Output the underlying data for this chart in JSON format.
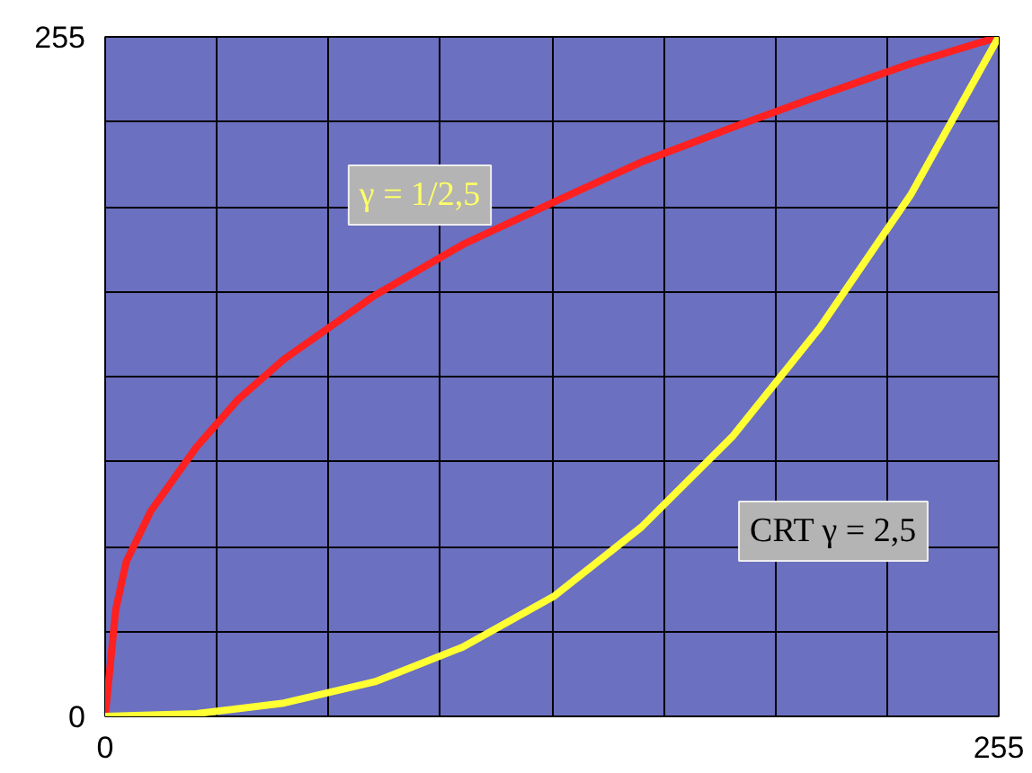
{
  "chart_data": {
    "type": "line",
    "xlim": [
      0,
      255
    ],
    "ylim": [
      0,
      255
    ],
    "xticks": [
      0,
      {
        "value": 31.875,
        "label": null
      },
      {
        "value": 63.75,
        "label": null
      },
      {
        "value": 95.625,
        "label": null
      },
      {
        "value": 127.5,
        "label": null
      },
      {
        "value": 159.375,
        "label": null
      },
      {
        "value": 191.25,
        "label": null
      },
      {
        "value": 223.125,
        "label": null
      },
      255
    ],
    "yticks": [
      0,
      {
        "value": 31.875,
        "label": null
      },
      {
        "value": 63.75,
        "label": null
      },
      {
        "value": 95.625,
        "label": null
      },
      {
        "value": 127.5,
        "label": null
      },
      {
        "value": 159.375,
        "label": null
      },
      {
        "value": 191.25,
        "label": null
      },
      {
        "value": 223.125,
        "label": null
      },
      255
    ],
    "grid": true,
    "marker": "none",
    "line_style": "solid",
    "series": [
      {
        "color": "#ff2020",
        "x": [
          0,
          3,
          6,
          13,
          26,
          38,
          51,
          77,
          102,
          128,
          153,
          179,
          204,
          230,
          255
        ],
        "values": [
          0,
          40,
          58,
          77,
          101,
          119,
          134,
          158,
          177,
          193,
          208,
          221,
          233,
          245,
          255
        ]
      },
      {
        "color": "#ffff33",
        "x": [
          0,
          26,
          51,
          77,
          102,
          128,
          153,
          179,
          204,
          230,
          255
        ],
        "values": [
          0,
          1,
          5,
          13,
          26,
          45,
          71,
          105,
          146,
          196,
          255
        ]
      }
    ],
    "annotations": [
      "γ = 1/2,5",
      "CRT γ = 2,5"
    ]
  }
}
